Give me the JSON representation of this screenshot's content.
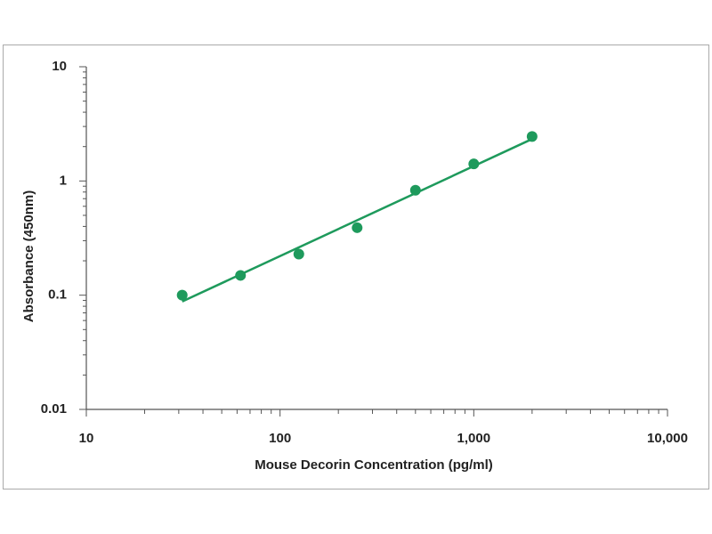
{
  "chart_data": {
    "type": "scatter",
    "x_label": "Mouse Decorin Concentration (pg/ml)",
    "y_label": "Absorbance (450nm)",
    "log_x": true,
    "log_y": true,
    "xlim": [
      10,
      10000
    ],
    "ylim": [
      0.01,
      10
    ],
    "xticks": [
      10,
      100,
      {
        "value": 1000,
        "label": "1,000"
      },
      {
        "value": 10000,
        "label": "10,000"
      }
    ],
    "yticks": [
      0.01,
      0.1,
      1,
      10
    ],
    "series": [
      {
        "mode": "markers",
        "color": "#1e9a5c",
        "x": [
          31.25,
          62.5,
          125,
          250,
          500,
          1000,
          2000
        ],
        "values": [
          0.1,
          0.149,
          0.229,
          0.39,
          0.83,
          1.41,
          2.45
        ]
      },
      {
        "mode": "line",
        "color": "#1e9a5c",
        "x": [
          31.25,
          2000
        ],
        "values": [
          0.088,
          2.33
        ]
      }
    ]
  }
}
